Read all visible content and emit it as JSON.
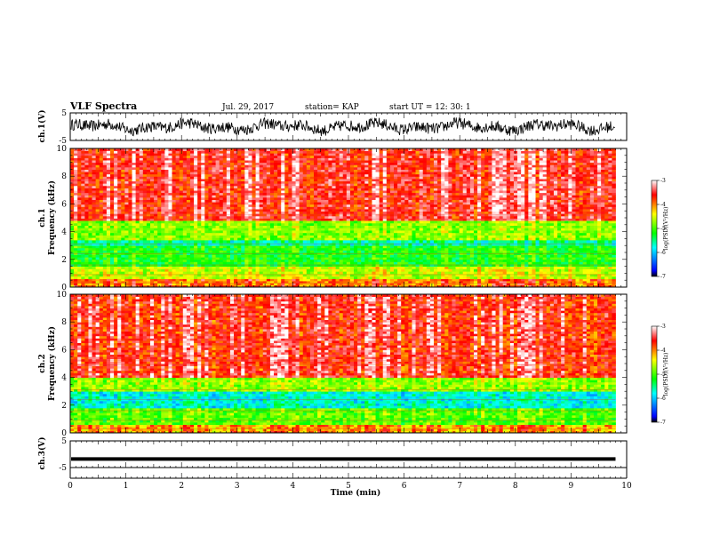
{
  "header": {
    "title": "VLF Spectra",
    "date": "Jul. 29, 2017",
    "station": "station= KAP",
    "start": "start UT = 12: 30: 1"
  },
  "chart_data": [
    {
      "type": "line",
      "panel": "ch1-waveform",
      "ylabel": "ch.1(V)",
      "yticks": [
        "5",
        "-5"
      ],
      "ylim": [
        -5,
        5
      ],
      "xlim": [
        0,
        10
      ],
      "x_end": 9.8,
      "description_of_series": "continuous noisy waveform spanning roughly -3 to 3 V"
    },
    {
      "type": "heatmap",
      "panel": "ch1-spectrogram",
      "ylabel": "ch.1",
      "ylabel2": "Frequency (kHz)",
      "yticks": [
        "0",
        "2",
        "4",
        "6",
        "8",
        "10"
      ],
      "ylim": [
        0,
        10
      ],
      "xlim": [
        0,
        10
      ],
      "x_end": 9.8,
      "bands": [
        {
          "from": 0,
          "to": 0.6,
          "level": -4.0
        },
        {
          "from": 0.6,
          "to": 1.5,
          "level": -4.6
        },
        {
          "from": 1.5,
          "to": 3.0,
          "level": -5.2
        },
        {
          "from": 3.0,
          "to": 3.4,
          "level": -5.6
        },
        {
          "from": 3.4,
          "to": 4.8,
          "level": -4.8
        },
        {
          "from": 4.8,
          "to": 10,
          "level": -3.6
        }
      ],
      "colorbar": {
        "label": "log(PSD)(V²/Hz)",
        "ticks": [
          "-3",
          "-4",
          "-5",
          "-6",
          "-7"
        ],
        "range": [
          -7,
          -3
        ]
      }
    },
    {
      "type": "heatmap",
      "panel": "ch2-spectrogram",
      "ylabel": "ch.2",
      "ylabel2": "Frequency (kHz)",
      "yticks": [
        "0",
        "2",
        "4",
        "6",
        "8",
        "10"
      ],
      "ylim": [
        0,
        10
      ],
      "xlim": [
        0,
        10
      ],
      "x_end": 9.8,
      "bands": [
        {
          "from": 0,
          "to": 0.6,
          "level": -4.2
        },
        {
          "from": 0.6,
          "to": 1.8,
          "level": -5.0
        },
        {
          "from": 1.8,
          "to": 3.0,
          "level": -5.8
        },
        {
          "from": 3.0,
          "to": 4.0,
          "level": -4.8
        },
        {
          "from": 4.0,
          "to": 10,
          "level": -3.7
        }
      ],
      "colorbar": {
        "label": "log(PSD)(V²/Hz)",
        "ticks": [
          "-3",
          "-4",
          "-5",
          "-6",
          "-7"
        ],
        "range": [
          -7,
          -3
        ]
      }
    },
    {
      "type": "line",
      "panel": "ch3-waveform",
      "ylabel": "ch.3(V)",
      "yticks": [
        "5",
        "-5"
      ],
      "ylim": [
        -5,
        5
      ],
      "xlim": [
        0,
        10
      ],
      "x_end": 9.8,
      "constant_value": -1.8
    }
  ],
  "xaxis": {
    "label": "Time (min)",
    "ticks": [
      "0",
      "1",
      "2",
      "3",
      "4",
      "5",
      "6",
      "7",
      "8",
      "9",
      "10"
    ],
    "range": [
      0,
      10
    ]
  },
  "colors": {
    "axis": "#000000",
    "colormap": [
      "#000000",
      "#0000ff",
      "#00ffff",
      "#00ff00",
      "#ffff00",
      "#ff0000",
      "#ffffff"
    ]
  }
}
